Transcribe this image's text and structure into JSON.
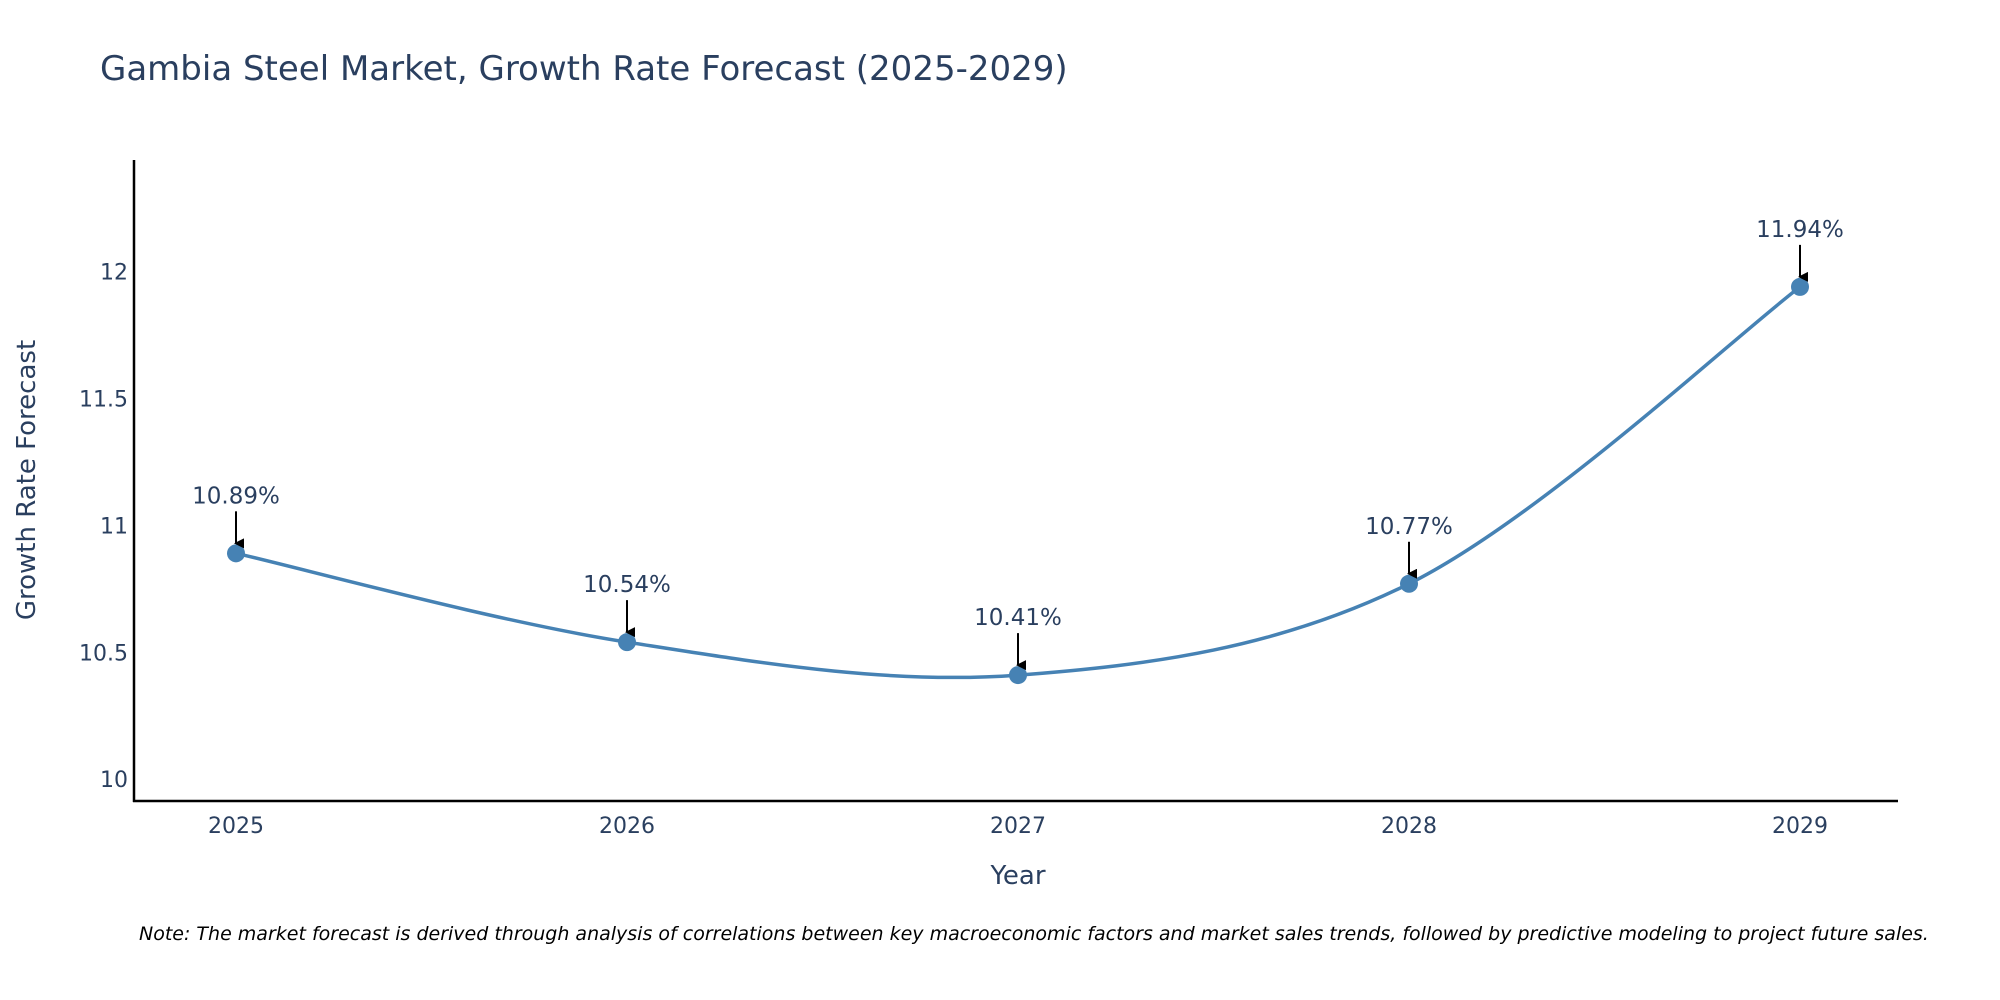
{
  "chart_data": {
    "type": "line",
    "title": "Gambia Steel Market, Growth Rate Forecast (2025-2029)",
    "xlabel": "Year",
    "ylabel": "Growth Rate Forecast",
    "categories": [
      "2025",
      "2026",
      "2027",
      "2028",
      "2029"
    ],
    "values": [
      10.89,
      10.54,
      10.41,
      10.77,
      11.94
    ],
    "data_labels": [
      "10.89%",
      "10.54%",
      "10.41%",
      "10.77%",
      "11.94%"
    ],
    "yticks": [
      10,
      10.5,
      11,
      11.5,
      12
    ],
    "ytick_labels": [
      "10",
      "10.5",
      "11",
      "11.5",
      "12"
    ],
    "ylim": [
      9.91,
      12.44
    ],
    "grid": false,
    "line_shape": "spline",
    "colors": {
      "line": "#4682b4",
      "marker": "#4682b4",
      "text": "#2a3f5f",
      "axis": "#000000",
      "arrow": "#000000"
    },
    "note": "Note: The market forecast is derived through analysis of correlations between key macroeconomic factors and market sales trends, followed by predictive modeling to project future sales."
  }
}
